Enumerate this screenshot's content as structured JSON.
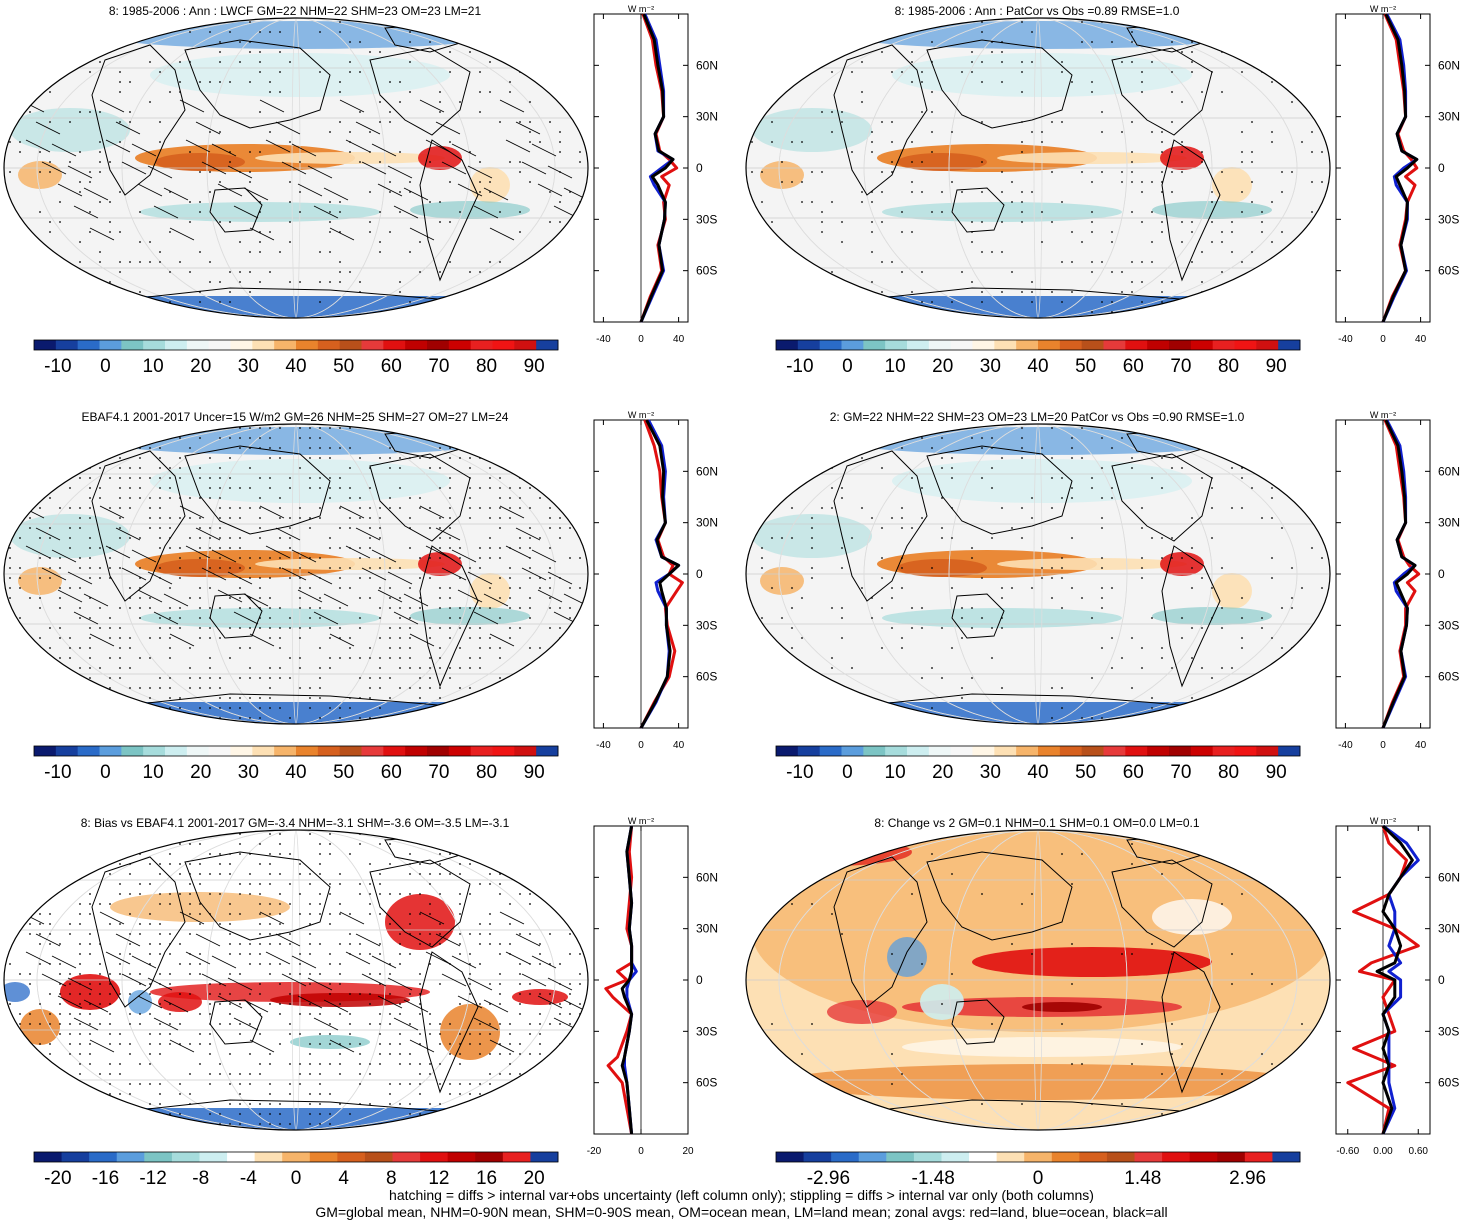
{
  "caption": {
    "line1": "hatching = diffs > internal var+obs uncertainty (left column only); stippling = diffs > internal var only (both columns)",
    "line2": "GM=global mean, NHM=0-90N mean, SHM=0-90S mean, OM=ocean mean, LM=land mean; zonal avgs: red=land, blue=ocean, black=all"
  },
  "units": "W m⁻²",
  "lat_labels": [
    "60N",
    "30N",
    "0",
    "30S",
    "60S"
  ],
  "colors": {
    "land": "#e01010",
    "ocean": "#1020d0",
    "all": "#000000",
    "full_palette": [
      "#0a1a6e",
      "#163f9e",
      "#2a6bc8",
      "#5b9ddd",
      "#7cc4c4",
      "#a6dcdc",
      "#cdeef0",
      "#eef7f7",
      "#f7f7f7",
      "#fff6e6",
      "#fde0b4",
      "#f6b46a",
      "#e9832c",
      "#d6601e",
      "#b8501a",
      "#e63a3a",
      "#e01010",
      "#c00000",
      "#a00000",
      "#cc0000",
      "#e82020",
      "#f01414",
      "#d01010",
      "#163f9e"
    ],
    "diff_palette": [
      "#0a1a6e",
      "#163f9e",
      "#2a6bc8",
      "#5b9ddd",
      "#7cc4c4",
      "#a6dcdc",
      "#cdeef0",
      "#ffffff",
      "#fde0b4",
      "#f6b46a",
      "#e9832c",
      "#d6601e",
      "#b8501a",
      "#e63a3a",
      "#e01010",
      "#c00000",
      "#a00000",
      "#e82020",
      "#163f9e"
    ]
  },
  "chart_data": [
    {
      "type": "heatmap",
      "title": "8: 1985-2006 : Ann : LWCF GM=22 NHM=22 SHM=23 OM=23 LM=21",
      "colorbar": {
        "min": -15,
        "max": 95,
        "ticks": [
          "-10",
          "0",
          "10",
          "20",
          "30",
          "40",
          "50",
          "60",
          "70",
          "80",
          "90"
        ],
        "palette": "full"
      },
      "zonal": {
        "xlim": [
          -50,
          50
        ],
        "xticks": [
          "-40",
          "0",
          "40"
        ],
        "lat": [
          -90,
          -75,
          -60,
          -45,
          -30,
          -20,
          -10,
          -5,
          0,
          5,
          10,
          20,
          30,
          45,
          60,
          75,
          90
        ],
        "land": [
          0,
          10,
          22,
          18,
          26,
          24,
          30,
          22,
          38,
          30,
          20,
          16,
          24,
          22,
          16,
          12,
          2
        ],
        "ocean": [
          0,
          12,
          24,
          19,
          25,
          26,
          14,
          10,
          22,
          34,
          18,
          15,
          24,
          24,
          20,
          16,
          4
        ],
        "all": [
          0,
          11,
          23,
          19,
          25,
          26,
          18,
          12,
          26,
          34,
          19,
          15,
          24,
          23,
          18,
          14,
          3
        ]
      }
    },
    {
      "type": "heatmap",
      "title": "8: 1985-2006 : Ann : PatCor vs Obs =0.89 RMSE=1.0",
      "colorbar": {
        "min": -15,
        "max": 95,
        "ticks": [
          "-10",
          "0",
          "10",
          "20",
          "30",
          "40",
          "50",
          "60",
          "70",
          "80",
          "90"
        ],
        "palette": "full"
      },
      "zonal": {
        "xlim": [
          -50,
          50
        ],
        "xticks": [
          "-40",
          "0",
          "40"
        ],
        "lat": [
          -90,
          -75,
          -60,
          -45,
          -30,
          -20,
          -10,
          -5,
          0,
          5,
          10,
          20,
          30,
          45,
          60,
          75,
          90
        ],
        "land": [
          0,
          10,
          24,
          18,
          24,
          26,
          34,
          24,
          36,
          30,
          22,
          16,
          24,
          22,
          18,
          14,
          2
        ],
        "ocean": [
          0,
          12,
          25,
          19,
          26,
          26,
          14,
          12,
          22,
          36,
          20,
          15,
          24,
          24,
          22,
          18,
          4
        ],
        "all": [
          0,
          11,
          24,
          19,
          25,
          26,
          18,
          14,
          26,
          36,
          20,
          15,
          24,
          23,
          20,
          16,
          3
        ]
      }
    },
    {
      "type": "heatmap",
      "title": "EBAF4.1 2001-2017 Uncer=15 W/m2 GM=26 NHM=25 SHM=27 OM=27 LM=24",
      "colorbar": {
        "min": -15,
        "max": 95,
        "ticks": [
          "-10",
          "0",
          "10",
          "20",
          "30",
          "40",
          "50",
          "60",
          "70",
          "80",
          "90"
        ],
        "palette": "full"
      },
      "zonal": {
        "xlim": [
          -50,
          50
        ],
        "xticks": [
          "-40",
          "0",
          "40"
        ],
        "lat": [
          -90,
          -75,
          -60,
          -45,
          -30,
          -20,
          -10,
          -5,
          0,
          5,
          10,
          20,
          30,
          45,
          60,
          75,
          90
        ],
        "land": [
          0,
          14,
          30,
          36,
          28,
          26,
          38,
          44,
          30,
          34,
          24,
          18,
          26,
          22,
          20,
          14,
          4
        ],
        "ocean": [
          0,
          16,
          28,
          30,
          27,
          27,
          18,
          16,
          30,
          40,
          22,
          16,
          26,
          24,
          26,
          22,
          8
        ],
        "all": [
          0,
          15,
          28,
          31,
          27,
          27,
          22,
          20,
          30,
          40,
          22,
          17,
          26,
          23,
          24,
          20,
          6
        ]
      }
    },
    {
      "type": "heatmap",
      "title": "2: GM=22 NHM=22 SHM=23 OM=23 LM=20 PatCor vs Obs =0.90 RMSE=1.0",
      "colorbar": {
        "min": -15,
        "max": 95,
        "ticks": [
          "-10",
          "0",
          "10",
          "20",
          "30",
          "40",
          "50",
          "60",
          "70",
          "80",
          "90"
        ],
        "palette": "full"
      },
      "zonal": {
        "xlim": [
          -50,
          50
        ],
        "xticks": [
          "-40",
          "0",
          "40"
        ],
        "lat": [
          -90,
          -75,
          -60,
          -45,
          -30,
          -20,
          -10,
          -5,
          0,
          5,
          10,
          20,
          30,
          45,
          60,
          75,
          90
        ],
        "land": [
          0,
          10,
          22,
          18,
          24,
          24,
          34,
          26,
          38,
          28,
          22,
          16,
          24,
          22,
          18,
          14,
          2
        ],
        "ocean": [
          0,
          12,
          24,
          19,
          25,
          26,
          14,
          12,
          22,
          34,
          20,
          15,
          24,
          24,
          22,
          18,
          4
        ],
        "all": [
          0,
          11,
          23,
          19,
          25,
          26,
          18,
          14,
          26,
          34,
          20,
          15,
          24,
          23,
          20,
          16,
          3
        ]
      }
    },
    {
      "type": "heatmap",
      "title": "8: Bias vs EBAF4.1 2001-2017 GM=-3.4 NHM=-3.1 SHM=-3.6 OM=-3.5 LM=-3.1",
      "colorbar": {
        "min": -22,
        "max": 22,
        "ticks": [
          "-20",
          "-16",
          "-12",
          "-8",
          "-4",
          "0",
          "4",
          "8",
          "12",
          "16",
          "20"
        ],
        "palette": "diff"
      },
      "zonal": {
        "xlim": [
          -20,
          20
        ],
        "xticks": [
          "-20",
          "0",
          "20"
        ],
        "lat": [
          -90,
          -75,
          -60,
          -50,
          -45,
          -30,
          -20,
          -10,
          -5,
          0,
          5,
          10,
          20,
          30,
          45,
          60,
          75,
          90
        ],
        "land": [
          -4,
          -6,
          -8,
          -14,
          -10,
          -6,
          -4,
          -12,
          -15,
          -6,
          -10,
          -4,
          -4,
          -6,
          -5,
          -4,
          -5,
          -4
        ],
        "ocean": [
          -4,
          -5,
          -6,
          -7,
          -7,
          -5,
          -4,
          -6,
          -6,
          -5,
          -2,
          -4,
          -4,
          -5,
          -4,
          -5,
          -6,
          -4
        ],
        "all": [
          -4,
          -5,
          -6,
          -8,
          -7,
          -5,
          -4,
          -7,
          -8,
          -5,
          -4,
          -4,
          -4,
          -5,
          -4,
          -5,
          -6,
          -4
        ]
      }
    },
    {
      "type": "heatmap",
      "title": "8: Change vs 2 GM=0.1 NHM=0.1 SHM=0.1 OM=0.0 LM=0.1",
      "colorbar": {
        "min": -3.7,
        "max": 3.7,
        "ticks": [
          "-2.96",
          "-1.48",
          "0",
          "1.48",
          "2.96"
        ],
        "palette": "diff"
      },
      "zonal": {
        "xlim": [
          -0.8,
          0.8
        ],
        "xticks": [
          "-0.60",
          "0.00",
          "0.60"
        ],
        "lat": [
          -90,
          -75,
          -60,
          -50,
          -40,
          -30,
          -20,
          -10,
          0,
          5,
          10,
          20,
          30,
          40,
          50,
          60,
          70,
          80,
          90
        ],
        "land": [
          0,
          0.1,
          -0.6,
          0.2,
          -0.5,
          0.2,
          0.1,
          0.0,
          0.2,
          -0.4,
          -0.2,
          0.6,
          0.2,
          -0.5,
          0.1,
          0.3,
          0.4,
          0.1,
          0.0
        ],
        "ocean": [
          0,
          0.2,
          0.1,
          0.1,
          0.1,
          0.1,
          0.0,
          0.3,
          0.3,
          0.1,
          0.3,
          0.1,
          0.2,
          0.2,
          0.1,
          0.3,
          0.6,
          0.4,
          0.0
        ],
        "all": [
          0,
          0.15,
          0.0,
          0.1,
          0.0,
          0.1,
          0.0,
          0.2,
          0.2,
          -0.1,
          0.2,
          0.3,
          0.2,
          0.0,
          0.1,
          0.3,
          0.5,
          0.3,
          0.0
        ]
      }
    }
  ]
}
